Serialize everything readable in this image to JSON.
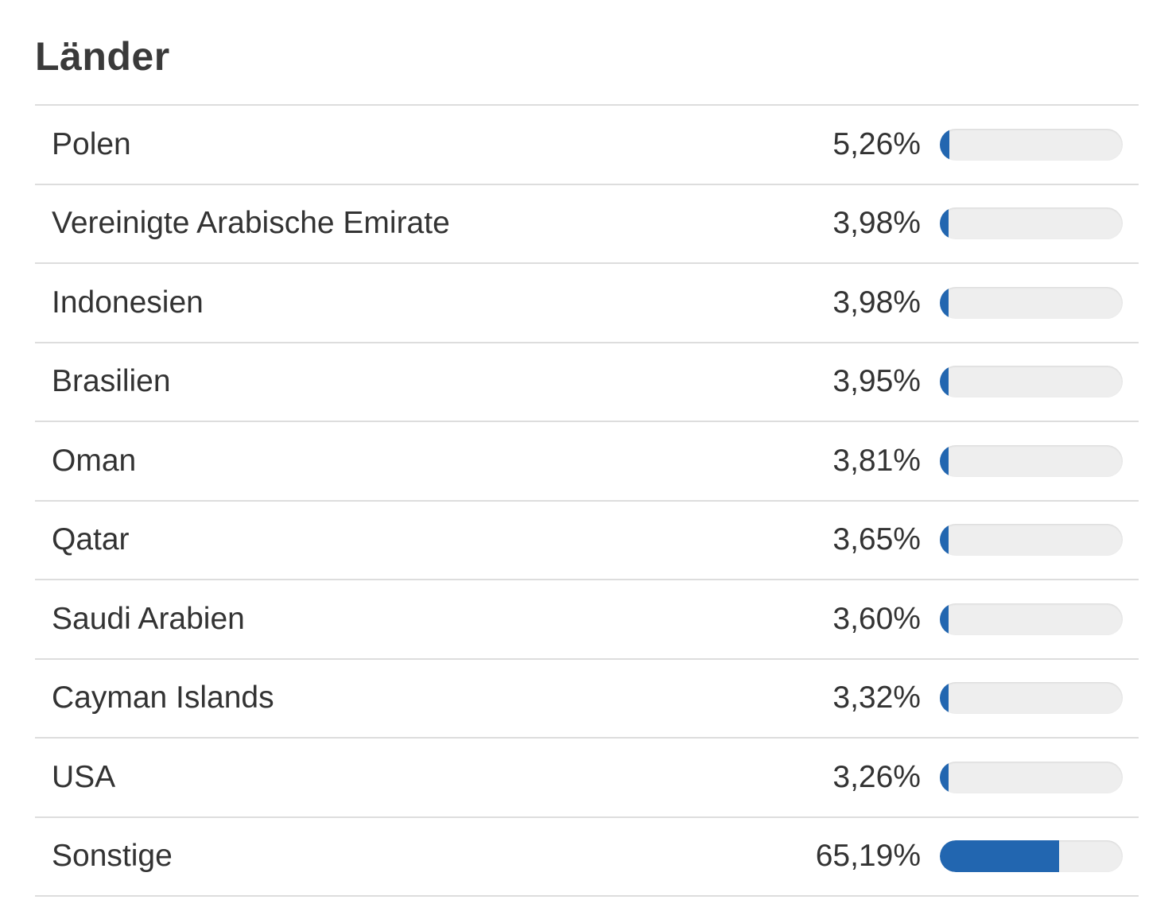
{
  "title": "Länder",
  "accent_color": "#2266b0",
  "rows": [
    {
      "label": "Polen",
      "percent_text": "5,26%",
      "fraction": 0.0526
    },
    {
      "label": "Vereinigte Arabische Emirate",
      "percent_text": "3,98%",
      "fraction": 0.0398
    },
    {
      "label": "Indonesien",
      "percent_text": "3,98%",
      "fraction": 0.0398
    },
    {
      "label": "Brasilien",
      "percent_text": "3,95%",
      "fraction": 0.0395
    },
    {
      "label": "Oman",
      "percent_text": "3,81%",
      "fraction": 0.0381
    },
    {
      "label": "Qatar",
      "percent_text": "3,65%",
      "fraction": 0.0365
    },
    {
      "label": "Saudi Arabien",
      "percent_text": "3,60%",
      "fraction": 0.036
    },
    {
      "label": "Cayman Islands",
      "percent_text": "3,32%",
      "fraction": 0.0332
    },
    {
      "label": "USA",
      "percent_text": "3,26%",
      "fraction": 0.0326
    },
    {
      "label": "Sonstige",
      "percent_text": "65,19%",
      "fraction": 0.6519
    }
  ]
}
